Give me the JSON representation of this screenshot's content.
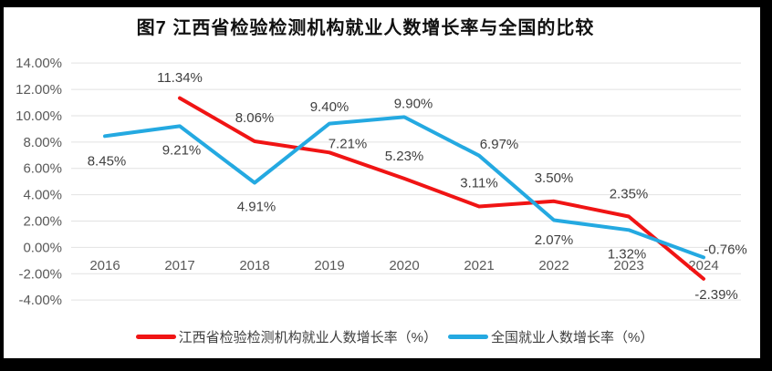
{
  "chart": {
    "title": "图7 江西省检验检测机构就业人数增长率与全国的比较"
  },
  "chart_data": {
    "type": "line",
    "title": "图7 江西省检验检测机构就业人数增长率与全国的比较",
    "categories": [
      "2016",
      "2017",
      "2018",
      "2019",
      "2020",
      "2021",
      "2022",
      "2023",
      "2024"
    ],
    "series": [
      {
        "name": "江西省检验检测机构就业人数增长率（%）",
        "color": "#f01414",
        "values": [
          null,
          11.34,
          8.06,
          7.21,
          5.23,
          3.11,
          3.5,
          2.35,
          -2.39
        ]
      },
      {
        "name": "全国就业人数增长率（%）",
        "color": "#24a9e1",
        "values": [
          8.45,
          9.21,
          4.91,
          9.4,
          9.9,
          6.97,
          2.07,
          1.32,
          -0.76
        ]
      }
    ],
    "xlabel": "",
    "ylabel": "",
    "ylim": [
      -4,
      14
    ],
    "ytick_step": 2,
    "ytick_format": "0.00%",
    "grid": true,
    "data_labels": true,
    "legend_position": "bottom"
  },
  "colors": {
    "frame_bg": "#000000",
    "panel_bg": "#ffffff",
    "gridline": "#e2e2e2",
    "axis_text": "#595959",
    "data_label_text": "#3f3f3f",
    "title_text": "#111111"
  }
}
